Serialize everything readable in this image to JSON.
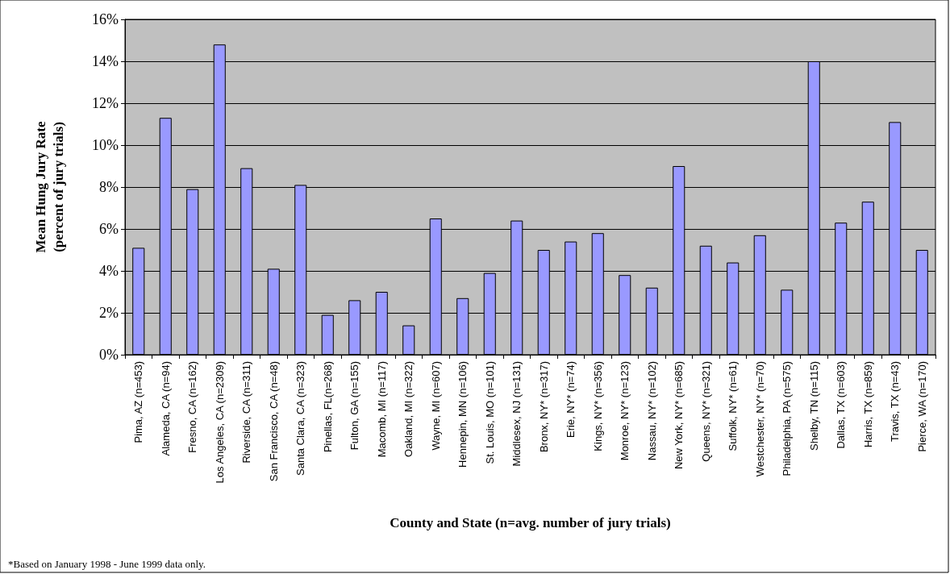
{
  "chart_data": {
    "type": "bar",
    "xlabel": "County and State (n=avg. number of jury trials)",
    "ylabel": "Mean Hung Jury Rate\n(percent of jury trials)",
    "categories": [
      "Pima, AZ (n=453)",
      "Alameda, CA (n=94)",
      "Fresno, CA (n=162)",
      "Los Angeles, CA (n=2309)",
      "Riverside, CA (n=311)",
      "San Francisco, CA (n=48)",
      "Santa Clara, CA (n=323)",
      "Pinellas, FL(n=268)",
      "Fulton, GA (n=155)",
      "Macomb, MI (n=117)",
      "Oakland, MI (n=322)",
      "Wayne, MI (n=607)",
      "Hennepin, MN (n=106)",
      "St. Louis, MO (n=101)",
      "Middlesex, NJ (n=131)",
      "Bronx, NY* (n=317)",
      "Erie, NY* (n=74)",
      "Kings, NY* (n=356)",
      "Monroe, NY* (n=123)",
      "Nassau, NY* (n=102)",
      "New York, NY* (n=685)",
      "Queens, NY* (n=321)",
      "Suffolk, NY* (n=61)",
      "Westchester, NY* (n=70)",
      "Philadelphia, PA (n=575)",
      "Shelby, TN (n=115)",
      "Dallas, TX (n=603)",
      "Harris, TX (n=859)",
      "Travis, TX (n=43)",
      "Pierce, WA (n=170)"
    ],
    "values": [
      5.1,
      11.3,
      7.9,
      14.8,
      8.9,
      4.1,
      8.1,
      1.9,
      2.6,
      3.0,
      1.4,
      6.5,
      2.7,
      3.9,
      6.4,
      5.0,
      5.4,
      5.8,
      3.8,
      3.2,
      9.0,
      5.2,
      4.4,
      5.7,
      3.1,
      14.0,
      6.3,
      7.3,
      11.1,
      5.0
    ],
    "color": "#9999ff",
    "ylim": [
      0,
      16
    ],
    "yticks": [
      {
        "value": 0,
        "label": "0%"
      },
      {
        "value": 2,
        "label": "2%"
      },
      {
        "value": 4,
        "label": "4%"
      },
      {
        "value": 6,
        "label": "6%"
      },
      {
        "value": 8,
        "label": "8%"
      },
      {
        "value": 10,
        "label": "10%"
      },
      {
        "value": 12,
        "label": "12%"
      },
      {
        "value": 14,
        "label": "14%"
      },
      {
        "value": 16,
        "label": "16%"
      }
    ],
    "grid": "y",
    "annotations": [
      "*Based on January 1998 - June 1999 data only."
    ]
  }
}
